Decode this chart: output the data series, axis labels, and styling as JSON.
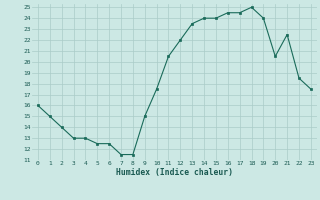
{
  "x": [
    0,
    1,
    2,
    3,
    4,
    5,
    6,
    7,
    8,
    9,
    10,
    11,
    12,
    13,
    14,
    15,
    16,
    17,
    18,
    19,
    20,
    21,
    22,
    23
  ],
  "y": [
    16,
    15,
    14,
    13,
    13,
    12.5,
    12.5,
    11.5,
    11.5,
    15,
    17.5,
    20.5,
    22,
    23.5,
    24,
    24,
    24.5,
    24.5,
    25,
    24,
    20.5,
    22.5,
    18.5,
    17.5
  ],
  "title": "",
  "xlabel": "Humidex (Indice chaleur)",
  "ylabel": "",
  "line_color": "#1a6b5a",
  "marker_color": "#1a6b5a",
  "bg_color": "#cce8e4",
  "grid_color": "#aaccc8",
  "ylim": [
    11,
    25
  ],
  "xlim": [
    -0.5,
    23.5
  ],
  "yticks": [
    11,
    12,
    13,
    14,
    15,
    16,
    17,
    18,
    19,
    20,
    21,
    22,
    23,
    24,
    25
  ],
  "xticks": [
    0,
    1,
    2,
    3,
    4,
    5,
    6,
    7,
    8,
    9,
    10,
    11,
    12,
    13,
    14,
    15,
    16,
    17,
    18,
    19,
    20,
    21,
    22,
    23
  ]
}
